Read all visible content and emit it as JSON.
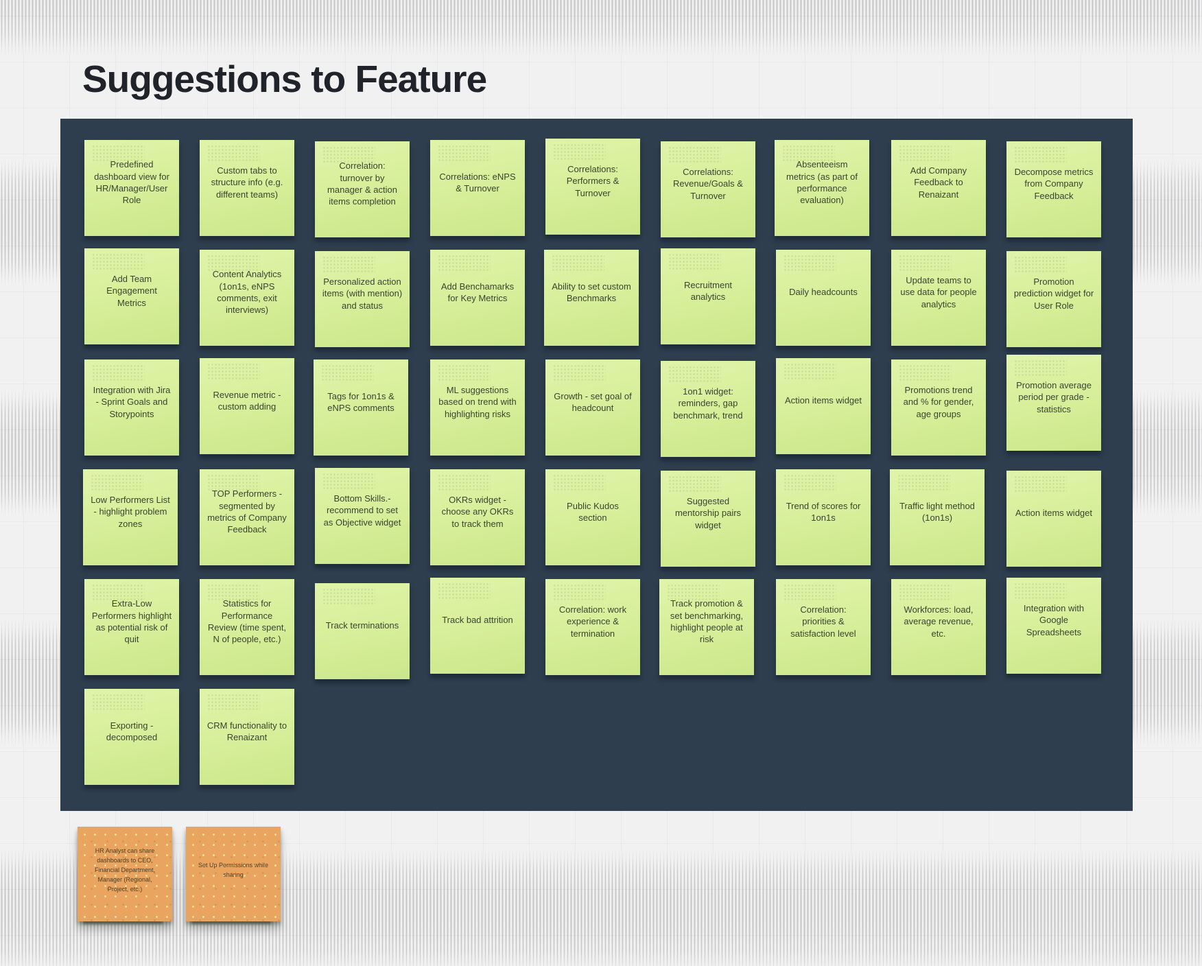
{
  "title": "Suggestions to Feature",
  "colors": {
    "canvas_background": "#f1f1f2",
    "frame_background": "#2e3e4e",
    "green_note": "#d8f09c",
    "orange_note": "#e9a55f",
    "title_text": "#20242a",
    "note_text": "#3a4431"
  },
  "board": {
    "rows": [
      [
        "Predefined dashboard view for HR/Manager/User Role",
        "Custom tabs to structure info (e.g. different teams)",
        "Correlation: turnover by manager & action items completion",
        "Correlations: eNPS & Turnover",
        "Correlations: Performers & Turnover",
        "Correlations: Revenue/Goals & Turnover",
        "Absenteeism metrics (as part of performance evaluation)",
        "Add Company Feedback to Renaizant",
        "Decompose metrics from Company Feedback"
      ],
      [
        "Add Team Engagement Metrics",
        "Content Analytics (1on1s, eNPS comments, exit interviews)",
        "Personalized action items (with mention) and status",
        "Add Benchamarks for Key Metrics",
        "Ability to set custom Benchmarks",
        "Recruitment analytics",
        "Daily headcounts",
        "Update teams to use data for people analytics",
        "Promotion prediction widget for User Role"
      ],
      [
        "Integration with Jira - Sprint Goals and Storypoints",
        "Revenue metric - custom adding",
        "Tags for 1on1s & eNPS comments",
        "ML suggestions based on trend with highlighting risks",
        "Growth - set goal of headcount",
        "1on1 widget: reminders, gap benchmark, trend",
        "Action items widget",
        "Promotions trend and % for gender, age groups",
        "Promotion average period per grade - statistics"
      ],
      [
        "Low Performers List - highlight problem zones",
        "TOP Performers - segmented by metrics of Company Feedback",
        "Bottom Skills.- recommend to set as Objective widget",
        "OKRs widget - choose any OKRs to track them",
        "Public Kudos section",
        "Suggested mentorship pairs widget",
        "Trend of scores for 1on1s",
        "Traffic light method (1on1s)",
        "Action items widget"
      ],
      [
        "Extra-Low Performers highlight as potential risk of quit",
        "Statistics for Performance Review (time spent, N of people, etc.)",
        "Track terminations",
        "Track bad attrition",
        "Correlation: work experience & termination",
        "Track promotion & set benchmarking, highlight people at risk",
        "Correlation: priorities & satisfaction level",
        "Workforces: load, average revenue, etc.",
        "Integration with Google Spreadsheets"
      ],
      [
        "Exporting - decomposed",
        "CRM functionality to Renaizant"
      ]
    ]
  },
  "side_notes": [
    "HR Analyst can share dashboards to CEO, Financial Department, Manager (Regional, Project, etc.)",
    "Set Up Permissions while sharing"
  ]
}
